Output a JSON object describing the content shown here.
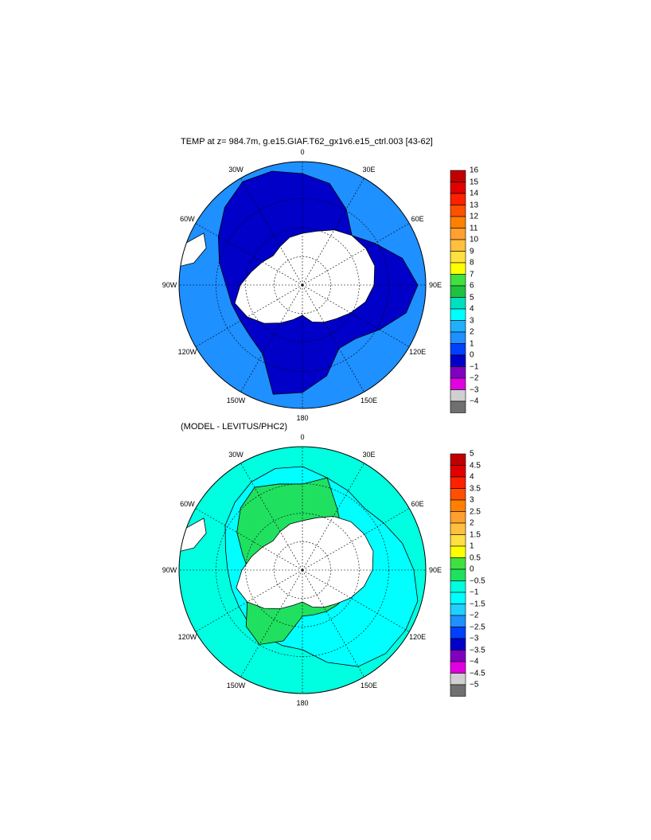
{
  "panels": [
    {
      "title": "TEMP at z= 984.7m, g.e15.GIAF.T62_gx1v6.e15_ctrl.003 [43-62]",
      "longitude_labels": [
        "0",
        "30E",
        "60E",
        "90E",
        "120E",
        "150E",
        "180",
        "150W",
        "120W",
        "90W",
        "60W",
        "30W"
      ],
      "colorbar": {
        "labels": [
          "16",
          "15",
          "14",
          "13",
          "12",
          "11",
          "10",
          "9",
          "8",
          "7",
          "6",
          "5",
          "4",
          "3",
          "2",
          "1",
          "0",
          "−1",
          "−2",
          "−3",
          "−4"
        ],
        "colors": [
          "#c00000",
          "#e00000",
          "#ff2000",
          "#ff5000",
          "#ff8000",
          "#ffa030",
          "#ffc040",
          "#ffe040",
          "#ffff00",
          "#40e040",
          "#20c040",
          "#00e0c0",
          "#00ffff",
          "#20b0ff",
          "#1e90ff",
          "#0040ff",
          "#0000c8",
          "#8000c0",
          "#e000e0",
          "#d0d0d0",
          "#707070"
        ]
      }
    },
    {
      "title": "(MODEL - LEVITUS/PHC2)",
      "longitude_labels": [
        "0",
        "30E",
        "60E",
        "90E",
        "120E",
        "150E",
        "180",
        "150W",
        "120W",
        "90W",
        "60W",
        "30W"
      ],
      "colorbar": {
        "labels": [
          "5",
          "4.5",
          "4",
          "3.5",
          "3",
          "2.5",
          "2",
          "1.5",
          "1",
          "0.5",
          "0",
          "−0.5",
          "−1",
          "−1.5",
          "−2",
          "−2.5",
          "−3",
          "−3.5",
          "−4",
          "−4.5",
          "−5"
        ],
        "colors": [
          "#c00000",
          "#e00000",
          "#ff2000",
          "#ff5000",
          "#ff8000",
          "#ffa030",
          "#ffc040",
          "#ffe040",
          "#ffff00",
          "#40e040",
          "#20e060",
          "#00ffe0",
          "#00ffff",
          "#20d0ff",
          "#1e90ff",
          "#0040ff",
          "#0000c8",
          "#8000c0",
          "#e000e0",
          "#d0d0d0",
          "#707070"
        ]
      }
    }
  ]
}
